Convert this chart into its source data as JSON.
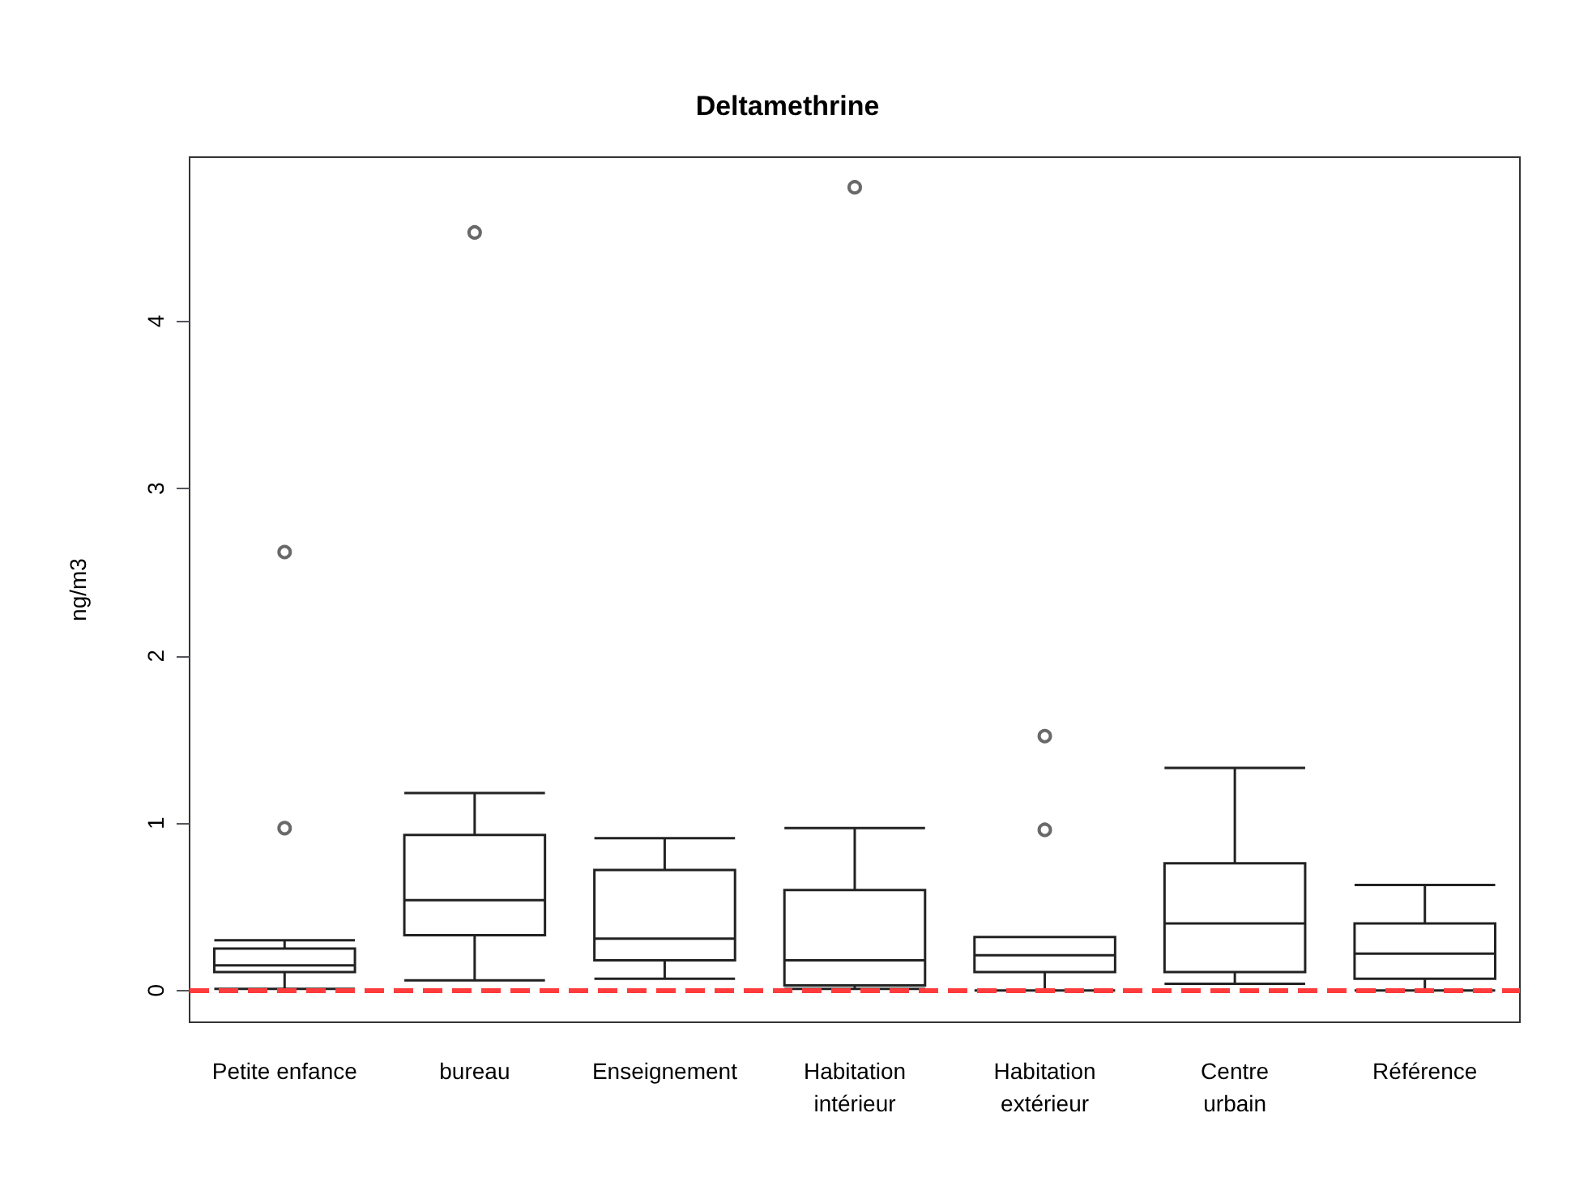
{
  "chart_data": {
    "type": "box",
    "title": "Deltamethrine",
    "ylabel": "ng/m3",
    "categories": [
      "Petite enfance",
      "bureau",
      "Enseignement",
      "Habitation\nintérieur",
      "Habitation\nextérieur",
      "Centre\nurbain",
      "Référence"
    ],
    "ylim": [
      -0.19,
      4.98
    ],
    "yticks": [
      0,
      1,
      2,
      3,
      4
    ],
    "boxes": [
      {
        "low": 0.01,
        "q1": 0.11,
        "median": 0.15,
        "q3": 0.25,
        "high": 0.3,
        "outliers": [
          0.97,
          2.62
        ]
      },
      {
        "low": 0.06,
        "q1": 0.33,
        "median": 0.54,
        "q3": 0.93,
        "high": 1.18,
        "outliers": [
          4.53
        ]
      },
      {
        "low": 0.07,
        "q1": 0.18,
        "median": 0.31,
        "q3": 0.72,
        "high": 0.91
      },
      {
        "low": 0.01,
        "q1": 0.03,
        "median": 0.18,
        "q3": 0.6,
        "high": 0.97,
        "outliers": [
          4.8
        ]
      },
      {
        "low": 0.0,
        "q1": 0.11,
        "median": 0.21,
        "q3": 0.32,
        "high": 0.32,
        "outliers": [
          0.96,
          1.52
        ]
      },
      {
        "low": 0.04,
        "q1": 0.11,
        "median": 0.4,
        "q3": 0.76,
        "high": 1.33
      },
      {
        "low": 0.0,
        "q1": 0.07,
        "median": 0.22,
        "q3": 0.4,
        "high": 0.63
      }
    ],
    "ref_lines": [
      {
        "axis": "y",
        "value": 0,
        "color": "#ff3b3b",
        "line_style": "dashed"
      }
    ]
  }
}
